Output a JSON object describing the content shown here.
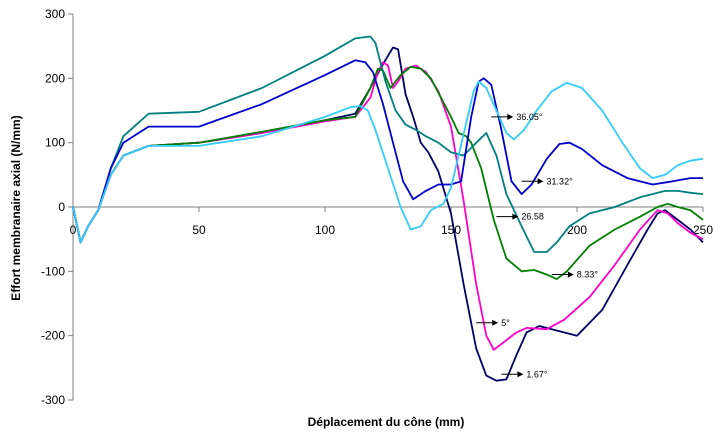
{
  "chart_data": {
    "type": "line",
    "title": "",
    "xlabel": "Déplacement du cône (mm)",
    "ylabel": "Effort membranaire axial (N/mm)",
    "xlim": [
      0,
      250
    ],
    "ylim": [
      -300,
      300
    ],
    "x_ticks": [
      "0",
      "50",
      "100",
      "150",
      "200",
      "250"
    ],
    "y_ticks": [
      "300",
      "200",
      "100",
      "0",
      "-100",
      "-200",
      "-300"
    ],
    "grid": false,
    "legend": "none",
    "series": [
      {
        "color": "#000066",
        "points": [
          [
            0,
            0
          ],
          [
            3,
            -55
          ],
          [
            6,
            -30
          ],
          [
            10,
            -5
          ],
          [
            15,
            50
          ],
          [
            20,
            80
          ],
          [
            30,
            95
          ],
          [
            50,
            100
          ],
          [
            75,
            115
          ],
          [
            100,
            135
          ],
          [
            112,
            145
          ],
          [
            118,
            185
          ],
          [
            122,
            215
          ],
          [
            125,
            235
          ],
          [
            127,
            248
          ],
          [
            129,
            245
          ],
          [
            132,
            175
          ],
          [
            135,
            140
          ],
          [
            138,
            100
          ],
          [
            141,
            85
          ],
          [
            145,
            55
          ],
          [
            150,
            -10
          ],
          [
            155,
            -120
          ],
          [
            160,
            -220
          ],
          [
            164,
            -262
          ],
          [
            168,
            -270
          ],
          [
            172,
            -268
          ],
          [
            176,
            -230
          ],
          [
            180,
            -195
          ],
          [
            185,
            -185
          ],
          [
            190,
            -190
          ],
          [
            200,
            -200
          ],
          [
            210,
            -160
          ],
          [
            220,
            -90
          ],
          [
            228,
            -35
          ],
          [
            232,
            -10
          ],
          [
            235,
            -5
          ],
          [
            240,
            -20
          ],
          [
            245,
            -35
          ],
          [
            250,
            -55
          ]
        ],
        "annotation": {
          "label": "1.67°",
          "x": 170,
          "y": -260
        }
      },
      {
        "color": "#ff00cc",
        "points": [
          [
            0,
            0
          ],
          [
            3,
            -55
          ],
          [
            6,
            -30
          ],
          [
            10,
            -5
          ],
          [
            15,
            50
          ],
          [
            20,
            80
          ],
          [
            30,
            95
          ],
          [
            50,
            100
          ],
          [
            75,
            115
          ],
          [
            100,
            133
          ],
          [
            112,
            140
          ],
          [
            118,
            170
          ],
          [
            121,
            210
          ],
          [
            123,
            225
          ],
          [
            125,
            220
          ],
          [
            127,
            185
          ],
          [
            129,
            195
          ],
          [
            132,
            215
          ],
          [
            136,
            220
          ],
          [
            140,
            210
          ],
          [
            145,
            180
          ],
          [
            150,
            125
          ],
          [
            155,
            10
          ],
          [
            160,
            -120
          ],
          [
            164,
            -200
          ],
          [
            167,
            -222
          ],
          [
            171,
            -210
          ],
          [
            176,
            -195
          ],
          [
            180,
            -188
          ],
          [
            188,
            -190
          ],
          [
            195,
            -175
          ],
          [
            205,
            -140
          ],
          [
            215,
            -90
          ],
          [
            225,
            -35
          ],
          [
            232,
            -5
          ],
          [
            236,
            -10
          ],
          [
            240,
            -25
          ],
          [
            245,
            -40
          ],
          [
            250,
            -50
          ]
        ],
        "annotation": {
          "label": "5°",
          "x": 160,
          "y": -180
        }
      },
      {
        "color": "#008000",
        "points": [
          [
            0,
            0
          ],
          [
            3,
            -55
          ],
          [
            6,
            -30
          ],
          [
            10,
            -5
          ],
          [
            15,
            50
          ],
          [
            20,
            80
          ],
          [
            30,
            95
          ],
          [
            50,
            100
          ],
          [
            75,
            117
          ],
          [
            100,
            135
          ],
          [
            112,
            140
          ],
          [
            118,
            185
          ],
          [
            121,
            215
          ],
          [
            123,
            212
          ],
          [
            126,
            185
          ],
          [
            130,
            205
          ],
          [
            134,
            218
          ],
          [
            138,
            215
          ],
          [
            142,
            200
          ],
          [
            146,
            170
          ],
          [
            150,
            140
          ],
          [
            153,
            115
          ],
          [
            156,
            110
          ],
          [
            158,
            100
          ],
          [
            162,
            60
          ],
          [
            167,
            -20
          ],
          [
            172,
            -80
          ],
          [
            178,
            -100
          ],
          [
            183,
            -98
          ],
          [
            188,
            -105
          ],
          [
            192,
            -112
          ],
          [
            196,
            -100
          ],
          [
            205,
            -60
          ],
          [
            215,
            -35
          ],
          [
            225,
            -15
          ],
          [
            232,
            0
          ],
          [
            236,
            5
          ],
          [
            240,
            0
          ],
          [
            245,
            -5
          ],
          [
            250,
            -20
          ]
        ],
        "annotation": {
          "label": "8.33°",
          "x": 190,
          "y": -105
        }
      },
      {
        "color": "#008080",
        "points": [
          [
            0,
            0
          ],
          [
            3,
            -55
          ],
          [
            6,
            -30
          ],
          [
            10,
            -5
          ],
          [
            15,
            60
          ],
          [
            20,
            110
          ],
          [
            30,
            145
          ],
          [
            50,
            148
          ],
          [
            75,
            185
          ],
          [
            100,
            235
          ],
          [
            112,
            262
          ],
          [
            118,
            265
          ],
          [
            120,
            255
          ],
          [
            124,
            195
          ],
          [
            128,
            150
          ],
          [
            132,
            128
          ],
          [
            136,
            120
          ],
          [
            140,
            110
          ],
          [
            145,
            100
          ],
          [
            150,
            85
          ],
          [
            155,
            80
          ],
          [
            160,
            100
          ],
          [
            164,
            115
          ],
          [
            168,
            80
          ],
          [
            172,
            20
          ],
          [
            178,
            -30
          ],
          [
            183,
            -70
          ],
          [
            188,
            -70
          ],
          [
            192,
            -55
          ],
          [
            197,
            -30
          ],
          [
            205,
            -10
          ],
          [
            215,
            0
          ],
          [
            225,
            15
          ],
          [
            235,
            25
          ],
          [
            240,
            25
          ],
          [
            245,
            22
          ],
          [
            250,
            20
          ]
        ],
        "annotation": {
          "label": "26.58",
          "x": 168,
          "y": -15
        }
      },
      {
        "color": "#0000cc",
        "points": [
          [
            0,
            0
          ],
          [
            3,
            -55
          ],
          [
            6,
            -30
          ],
          [
            10,
            -5
          ],
          [
            15,
            60
          ],
          [
            20,
            100
          ],
          [
            30,
            125
          ],
          [
            50,
            125
          ],
          [
            75,
            160
          ],
          [
            100,
            205
          ],
          [
            112,
            228
          ],
          [
            116,
            225
          ],
          [
            119,
            210
          ],
          [
            123,
            160
          ],
          [
            127,
            100
          ],
          [
            131,
            40
          ],
          [
            135,
            12
          ],
          [
            140,
            25
          ],
          [
            145,
            35
          ],
          [
            150,
            35
          ],
          [
            154,
            40
          ],
          [
            158,
            140
          ],
          [
            161,
            195
          ],
          [
            163,
            200
          ],
          [
            166,
            190
          ],
          [
            170,
            120
          ],
          [
            174,
            40
          ],
          [
            178,
            20
          ],
          [
            182,
            35
          ],
          [
            188,
            75
          ],
          [
            193,
            98
          ],
          [
            197,
            100
          ],
          [
            202,
            90
          ],
          [
            210,
            65
          ],
          [
            220,
            45
          ],
          [
            230,
            35
          ],
          [
            238,
            40
          ],
          [
            245,
            45
          ],
          [
            250,
            45
          ]
        ],
        "annotation": {
          "label": "31.32°",
          "x": 178,
          "y": 40
        }
      },
      {
        "color": "#33ccff",
        "points": [
          [
            0,
            0
          ],
          [
            3,
            -55
          ],
          [
            6,
            -30
          ],
          [
            10,
            -5
          ],
          [
            15,
            50
          ],
          [
            20,
            80
          ],
          [
            30,
            95
          ],
          [
            50,
            95
          ],
          [
            75,
            110
          ],
          [
            100,
            140
          ],
          [
            110,
            155
          ],
          [
            114,
            157
          ],
          [
            117,
            150
          ],
          [
            120,
            120
          ],
          [
            125,
            60
          ],
          [
            130,
            0
          ],
          [
            134,
            -35
          ],
          [
            138,
            -30
          ],
          [
            142,
            -5
          ],
          [
            147,
            5
          ],
          [
            150,
            30
          ],
          [
            153,
            80
          ],
          [
            156,
            130
          ],
          [
            159,
            180
          ],
          [
            161,
            195
          ],
          [
            164,
            185
          ],
          [
            168,
            150
          ],
          [
            172,
            115
          ],
          [
            175,
            105
          ],
          [
            179,
            120
          ],
          [
            184,
            150
          ],
          [
            190,
            180
          ],
          [
            196,
            193
          ],
          [
            202,
            185
          ],
          [
            210,
            150
          ],
          [
            218,
            100
          ],
          [
            225,
            60
          ],
          [
            230,
            45
          ],
          [
            235,
            50
          ],
          [
            240,
            65
          ],
          [
            245,
            72
          ],
          [
            250,
            75
          ]
        ],
        "annotation": {
          "label": "36.05°",
          "x": 166,
          "y": 140
        }
      }
    ]
  }
}
